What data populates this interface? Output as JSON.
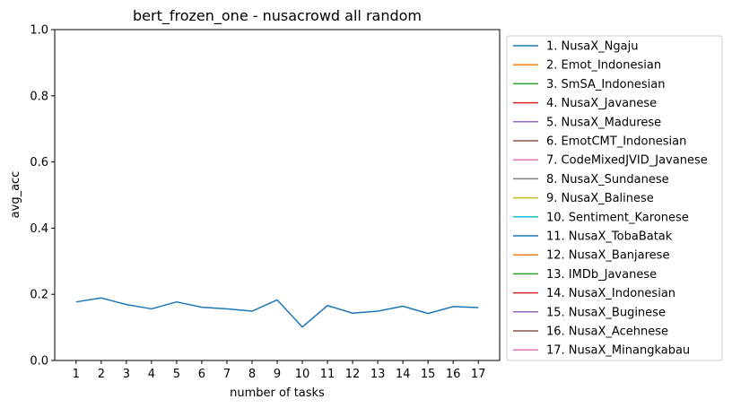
{
  "chart_data": {
    "type": "line",
    "title": "bert_frozen_one - nusacrowd all random",
    "xlabel": "number of tasks",
    "ylabel": "avg_acc",
    "x": [
      1,
      2,
      3,
      4,
      5,
      6,
      7,
      8,
      9,
      10,
      11,
      12,
      13,
      14,
      15,
      16,
      17
    ],
    "xlim": [
      0.15,
      17.85
    ],
    "ylim": [
      0.0,
      1.0
    ],
    "yticks": [
      "0.0",
      "0.2",
      "0.4",
      "0.6",
      "0.8",
      "1.0"
    ],
    "xticks": [
      "1",
      "2",
      "3",
      "4",
      "5",
      "6",
      "7",
      "8",
      "9",
      "10",
      "11",
      "12",
      "13",
      "14",
      "15",
      "16",
      "17"
    ],
    "grid": false,
    "legend_placement": "outside-right",
    "series": [
      {
        "name": "",
        "color": "#1f77b4",
        "values": [
          0.177,
          0.189,
          0.169,
          0.156,
          0.177,
          0.161,
          0.156,
          0.149,
          0.183,
          0.101,
          0.166,
          0.143,
          0.149,
          0.164,
          0.142,
          0.163,
          0.16
        ]
      }
    ],
    "legend": [
      {
        "label": "1. NusaX_Ngaju",
        "color": "#1f77b4"
      },
      {
        "label": "2. Emot_Indonesian",
        "color": "#ff7f0e"
      },
      {
        "label": "3. SmSA_Indonesian",
        "color": "#2ca02c"
      },
      {
        "label": "4. NusaX_Javanese",
        "color": "#d62728"
      },
      {
        "label": "5. NusaX_Madurese",
        "color": "#9467bd"
      },
      {
        "label": "6. EmotCMT_Indonesian",
        "color": "#8c564b"
      },
      {
        "label": "7. CodeMixedJVID_Javanese",
        "color": "#e377c2"
      },
      {
        "label": "8. NusaX_Sundanese",
        "color": "#7f7f7f"
      },
      {
        "label": "9. NusaX_Balinese",
        "color": "#bcbd22"
      },
      {
        "label": "10. Sentiment_Karonese",
        "color": "#17becf"
      },
      {
        "label": "11. NusaX_TobaBatak",
        "color": "#1f77b4"
      },
      {
        "label": "12. NusaX_Banjarese",
        "color": "#ff7f0e"
      },
      {
        "label": "13. IMDb_Javanese",
        "color": "#2ca02c"
      },
      {
        "label": "14. NusaX_Indonesian",
        "color": "#d62728"
      },
      {
        "label": "15. NusaX_Buginese",
        "color": "#9467bd"
      },
      {
        "label": "16. NusaX_Acehnese",
        "color": "#8c564b"
      },
      {
        "label": "17. NusaX_Minangkabau",
        "color": "#e377c2"
      }
    ]
  }
}
